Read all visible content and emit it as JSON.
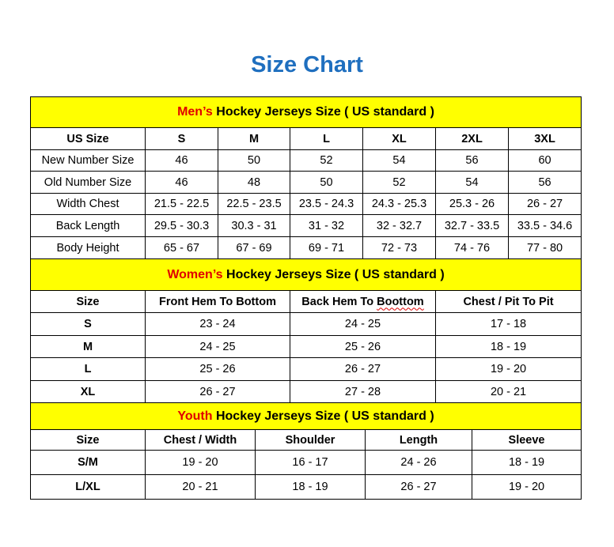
{
  "title": "Size Chart",
  "colors": {
    "title": "#1f6fbf",
    "band": "#ffff00",
    "accent": "#e00000"
  },
  "sections": [
    {
      "id": "mens",
      "accent": "Men’s",
      "heading": " Hockey Jerseys Size ( US standard )",
      "headers": [
        "US Size",
        "S",
        "M",
        "L",
        "XL",
        "2XL",
        "3XL"
      ],
      "label_bold": false,
      "rows": [
        [
          "New Number Size",
          "46",
          "50",
          "52",
          "54",
          "56",
          "60"
        ],
        [
          "Old Number Size",
          "46",
          "48",
          "50",
          "52",
          "54",
          "56"
        ],
        [
          "Width Chest",
          "21.5 - 22.5",
          "22.5 - 23.5",
          "23.5 - 24.3",
          "24.3 - 25.3",
          "25.3 - 26",
          "26 - 27"
        ],
        [
          "Back Length",
          "29.5 - 30.3",
          "30.3 - 31",
          "31 - 32",
          "32 - 32.7",
          "32.7 - 33.5",
          "33.5 - 34.6"
        ],
        [
          "Body Height",
          "65 - 67",
          "67 - 69",
          "69 - 71",
          "72 - 73",
          "74 - 76",
          "77 - 80"
        ]
      ]
    },
    {
      "id": "womens",
      "accent": "Women’s",
      "heading": " Hockey Jerseys Size ( US standard )",
      "headers": [
        "Size",
        "Front Hem To Bottom",
        "Back Hem To Boottom",
        "Chest / Pit To Pit"
      ],
      "label_bold": true,
      "rows": [
        [
          "S",
          "23 - 24",
          "24 - 25",
          "17 - 18"
        ],
        [
          "M",
          "24 - 25",
          "25 - 26",
          "18 - 19"
        ],
        [
          "L",
          "25 - 26",
          "26 - 27",
          "19 - 20"
        ],
        [
          "XL",
          "26 - 27",
          "27 - 28",
          "20 - 21"
        ]
      ]
    },
    {
      "id": "youth",
      "accent": "Youth",
      "heading": " Hockey Jerseys Size ( US standard )",
      "headers": [
        "Size",
        "Chest / Width",
        "Shoulder",
        "Length",
        "Sleeve"
      ],
      "label_bold": true,
      "rows": [
        [
          "S/M",
          "19 - 20",
          "16 - 17",
          "24 - 26",
          "18 - 19"
        ],
        [
          "L/XL",
          "20 - 21",
          "18 - 19",
          "26 - 27",
          "19 - 20"
        ]
      ]
    }
  ]
}
